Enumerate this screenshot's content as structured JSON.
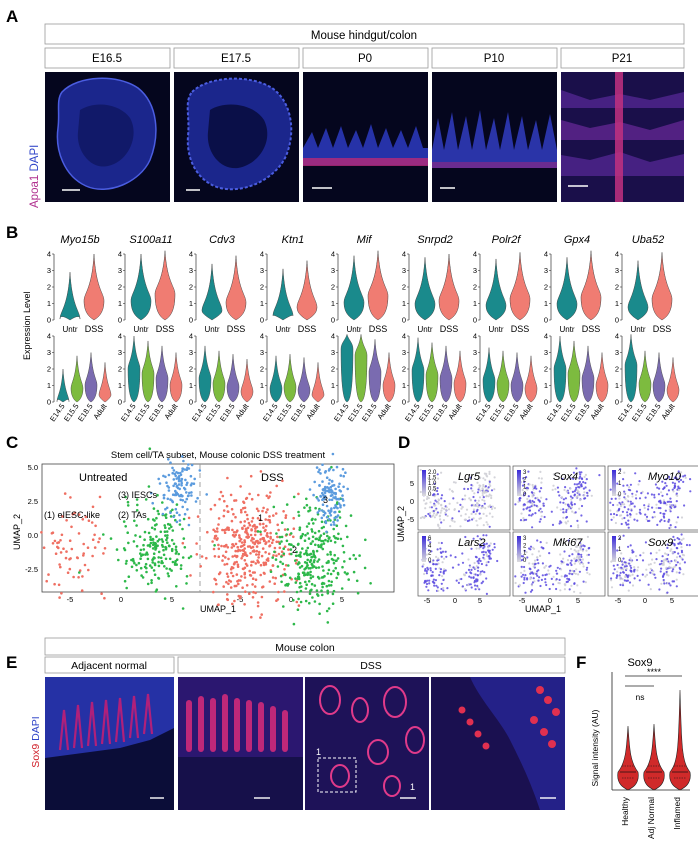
{
  "panels": {
    "a": {
      "letter": "A",
      "header": "Mouse hindgut/colon",
      "stages": [
        "E16.5",
        "E17.5",
        "P0",
        "P10",
        "P21"
      ],
      "stain_a": "Apoa1",
      "stain_b": "DAPI"
    },
    "b": {
      "letter": "B",
      "ylabel": "Expression Level",
      "genes": [
        "Myo15b",
        "S100a11",
        "Cdv3",
        "Ktn1",
        "Mif",
        "Snrpd2",
        "Polr2f",
        "Gpx4",
        "Uba52"
      ],
      "top_groups": [
        "Untr",
        "DSS"
      ],
      "bottom_groups": [
        "E14.5",
        "E15.5",
        "E18.5",
        "Adult"
      ],
      "top_ticks": [
        "0",
        "1",
        "2",
        "3",
        "4"
      ],
      "bottom_ticks": [
        "0",
        "1",
        "2",
        "3",
        "4"
      ]
    },
    "c": {
      "letter": "C",
      "title": "Stem cell/TA subset, Mouse colonic DSS treatment",
      "left_label": "Untreated",
      "right_label": "DSS",
      "clusters": [
        "(1) eIESC-like",
        "(2) TAs",
        "(3) IESCs"
      ],
      "dss_cluster_marks": [
        "1",
        "2",
        "3"
      ],
      "xlabel": "UMAP_1",
      "ylabel": "UMAP_2",
      "yticks": [
        "5.0",
        "2.5",
        "0.0",
        "-2.5"
      ],
      "xticks_left": [
        "-5",
        "0",
        "5"
      ],
      "xticks_right": [
        "-5",
        "0",
        "5"
      ]
    },
    "d": {
      "letter": "D",
      "genes_row1": [
        "Lgr5",
        "Sox4",
        "Myo10"
      ],
      "genes_row2": [
        "Lars2",
        "Mki67",
        "Sox9"
      ],
      "lgr5_scale": [
        "2.0",
        "1.5",
        "1.0",
        "0.5",
        "0"
      ],
      "sox4_scale": [
        "3",
        "2",
        "1",
        "0"
      ],
      "myo10_scale": [
        "2",
        "1",
        "0"
      ],
      "lars2_scale": [
        "6",
        "4",
        "2",
        "0"
      ],
      "mki67_scale": [
        "3",
        "2",
        "1",
        "0"
      ],
      "sox9_scale": [
        "2",
        "1",
        "0"
      ],
      "xlabel": "UMAP_1",
      "ylabel": "UMAP_2",
      "yticks": [
        "5",
        "0",
        "-5"
      ],
      "xticks": [
        "-5",
        "0",
        "5"
      ]
    },
    "e": {
      "letter": "E",
      "header": "Mouse colon",
      "sub_left": "Adjacent normal",
      "sub_right": "DSS",
      "stain_a": "Sox9",
      "stain_b": "DAPI",
      "marks": [
        "1",
        "1"
      ]
    },
    "f": {
      "letter": "F",
      "title": "Sox9",
      "ylabel": "Signal intensity (AU)",
      "categories": [
        "Healthy",
        "Adj Normal",
        "Inflamed"
      ],
      "sig_ns": "ns",
      "sig_star": "****"
    }
  },
  "colors": {
    "teal": "#1a8a8c",
    "salmon": "#f07c72",
    "green": "#7dbb3f",
    "purple": "#7a6bb0",
    "cl_red": "#ef6f62",
    "cl_green": "#2db84a",
    "cl_blue": "#5b9bde",
    "magenta": "#c2308f",
    "dapi": "#3045c8"
  },
  "chart_data": [
    {
      "type": "violin",
      "panel": "B-top",
      "categories": [
        "Untr",
        "DSS"
      ],
      "series": [
        {
          "name": "Myo15b",
          "values": [
            0.3,
            1.4
          ]
        },
        {
          "name": "S100a11",
          "values": [
            1.4,
            1.8
          ]
        },
        {
          "name": "Cdv3",
          "values": [
            0.8,
            1.3
          ]
        },
        {
          "name": "Ktn1",
          "values": [
            0.5,
            1.0
          ]
        },
        {
          "name": "Mif",
          "values": [
            1.3,
            1.7
          ]
        },
        {
          "name": "Snrpd2",
          "values": [
            1.2,
            1.4
          ]
        },
        {
          "name": "Polr2f",
          "values": [
            1.1,
            1.5
          ]
        },
        {
          "name": "Gpx4",
          "values": [
            1.2,
            1.6
          ]
        },
        {
          "name": "Uba52",
          "values": [
            1.0,
            1.5
          ]
        }
      ],
      "ylabel": "Expression Level",
      "ylim": [
        0,
        4
      ]
    },
    {
      "type": "violin",
      "panel": "B-bottom",
      "categories": [
        "E14.5",
        "E15.5",
        "E18.5",
        "Adult"
      ],
      "series": [
        {
          "name": "Myo15b",
          "values": [
            0.2,
            1.0,
            1.2,
            0.6
          ]
        },
        {
          "name": "S100a11",
          "values": [
            2.2,
            1.9,
            1.6,
            1.2
          ]
        },
        {
          "name": "Cdv3",
          "values": [
            1.6,
            1.3,
            1.1,
            0.8
          ]
        },
        {
          "name": "Ktn1",
          "values": [
            1.0,
            1.1,
            0.9,
            0.6
          ]
        },
        {
          "name": "Mif",
          "values": [
            3.4,
            3.0,
            2.0,
            1.2
          ]
        },
        {
          "name": "Snrpd2",
          "values": [
            2.1,
            1.8,
            1.6,
            1.3
          ]
        },
        {
          "name": "Polr2f",
          "values": [
            1.5,
            1.3,
            1.2,
            1.0
          ]
        },
        {
          "name": "Gpx4",
          "values": [
            2.2,
            1.9,
            1.6,
            1.2
          ]
        },
        {
          "name": "Uba52",
          "values": [
            2.4,
            1.3,
            1.2,
            0.9
          ]
        }
      ],
      "ylabel": "Expression Level",
      "ylim": [
        0,
        4
      ]
    },
    {
      "type": "violin",
      "panel": "F",
      "categories": [
        "Healthy",
        "Adj Normal",
        "Inflamed"
      ],
      "values": [
        25,
        24,
        26
      ],
      "title": "Sox9",
      "ylabel": "Signal intensity (AU)"
    }
  ]
}
